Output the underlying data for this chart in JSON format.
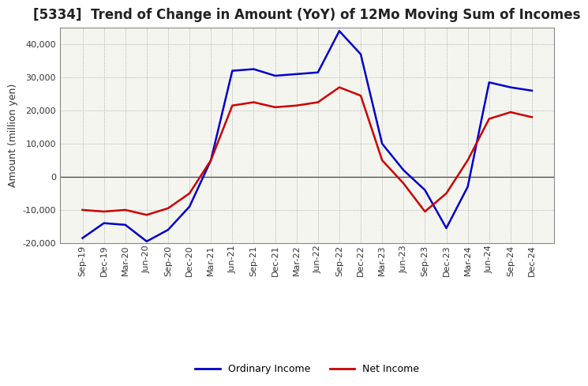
{
  "title": "[5334]  Trend of Change in Amount (YoY) of 12Mo Moving Sum of Incomes",
  "ylabel": "Amount (million yen)",
  "xlabels": [
    "Sep-19",
    "Dec-19",
    "Mar-20",
    "Jun-20",
    "Sep-20",
    "Dec-20",
    "Mar-21",
    "Jun-21",
    "Sep-21",
    "Dec-21",
    "Mar-22",
    "Jun-22",
    "Sep-22",
    "Dec-22",
    "Mar-23",
    "Jun-23",
    "Sep-23",
    "Dec-23",
    "Mar-24",
    "Jun-24",
    "Sep-24",
    "Dec-24"
  ],
  "ordinary_income": [
    -18500,
    -14000,
    -14500,
    -19500,
    -16000,
    -9000,
    5000,
    32000,
    32500,
    30500,
    31000,
    31500,
    44000,
    37000,
    10000,
    2000,
    -4000,
    -15500,
    -3000,
    28500,
    27000,
    26000
  ],
  "net_income": [
    -10000,
    -10500,
    -10000,
    -11500,
    -9500,
    -5000,
    5000,
    21500,
    22500,
    21000,
    21500,
    22500,
    27000,
    24500,
    5000,
    -2000,
    -10500,
    -5000,
    5000,
    17500,
    19500,
    18000
  ],
  "ordinary_color": "#0000cc",
  "net_color": "#cc0000",
  "ylim": [
    -20000,
    45000
  ],
  "yticks": [
    -20000,
    -10000,
    0,
    10000,
    20000,
    30000,
    40000
  ],
  "background_color": "#ffffff",
  "plot_bg_color": "#f5f5f0",
  "grid_color": "#999999",
  "title_fontsize": 12,
  "axis_fontsize": 9,
  "tick_fontsize": 8,
  "legend_fontsize": 9,
  "line_width": 1.8
}
